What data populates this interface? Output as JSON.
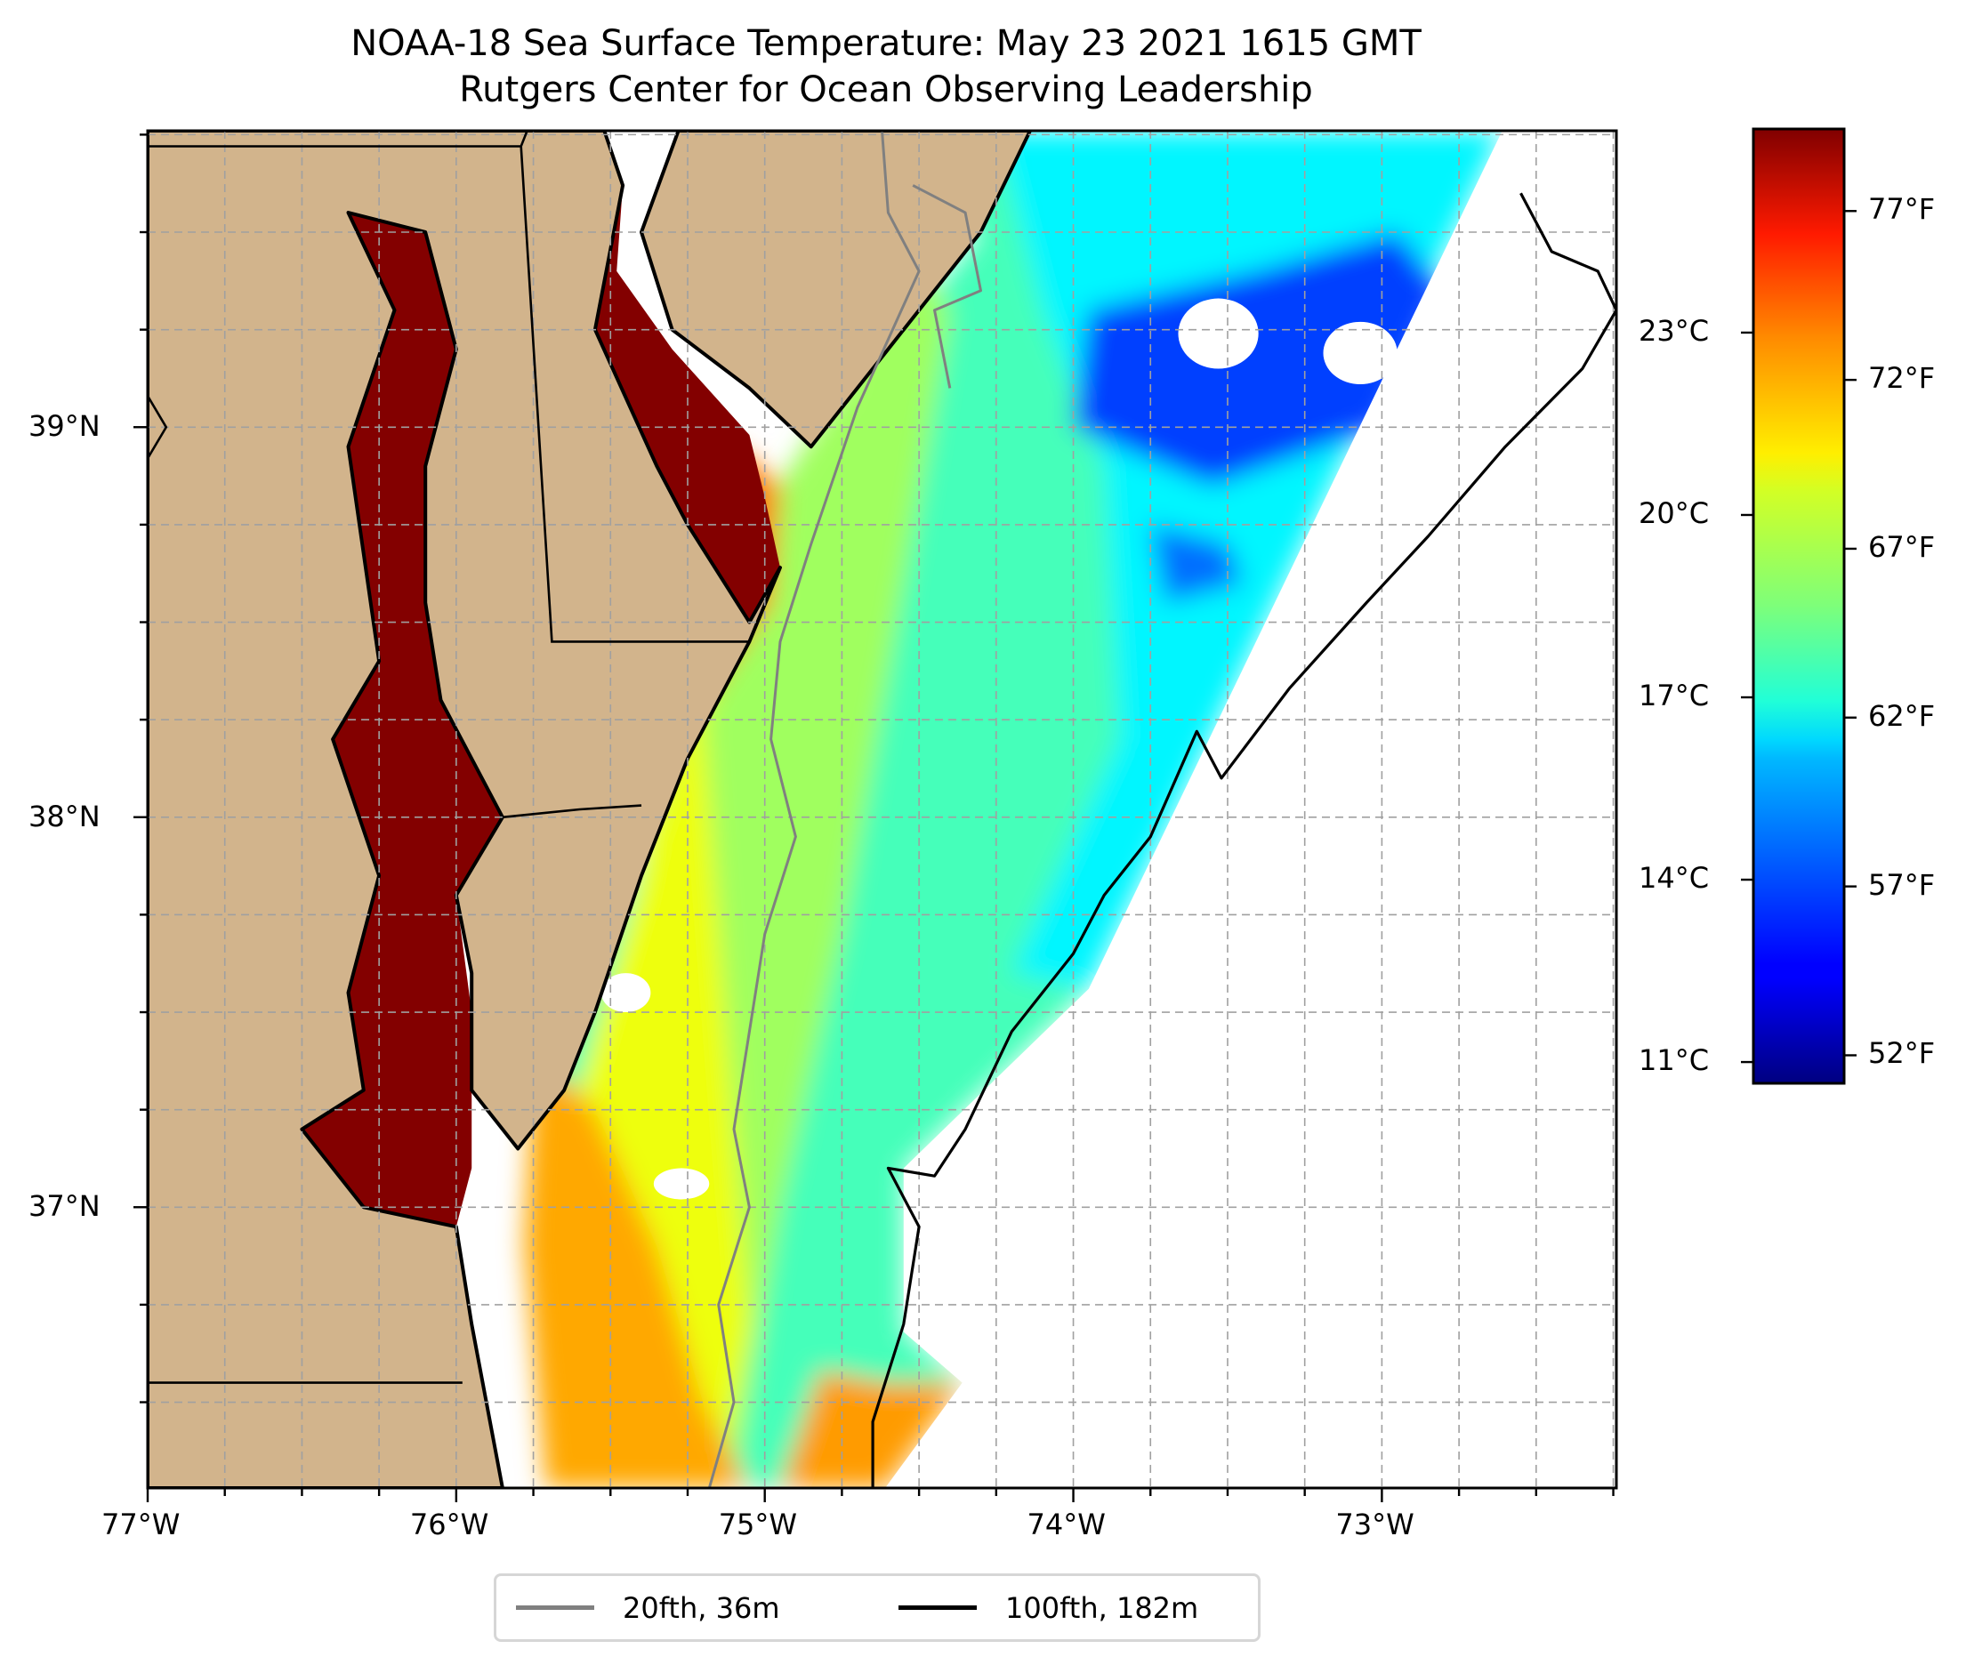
{
  "chart_data": {
    "type": "heatmap",
    "title": "NOAA-18 Sea Surface Temperature: May 23 2021 1615 GMT",
    "subtitle": "Rutgers Center for Ocean Observing Leadership",
    "xlabel": "",
    "ylabel": "",
    "projection": "PlateCarree",
    "extent": {
      "lon": [
        -77.0,
        -72.24
      ],
      "lat": [
        36.28,
        39.76
      ]
    },
    "grid": true,
    "x_ticks": [
      {
        "value": -77,
        "label": "77°W"
      },
      {
        "value": -76,
        "label": "76°W"
      },
      {
        "value": -75,
        "label": "75°W"
      },
      {
        "value": -74,
        "label": "74°W"
      },
      {
        "value": -73,
        "label": "73°W"
      }
    ],
    "x_minor_step": 0.25,
    "y_ticks": [
      {
        "value": 39,
        "label": "39°N"
      },
      {
        "value": 38,
        "label": "38°N"
      },
      {
        "value": 37,
        "label": "37°N"
      }
    ],
    "y_minor_step": 0.25,
    "colorbar": {
      "colormap": "jet",
      "range_c": [
        10.65,
        26.35
      ],
      "celsius_ticks": [
        {
          "value": 11,
          "label": "11°C"
        },
        {
          "value": 14,
          "label": "14°C"
        },
        {
          "value": 17,
          "label": "17°C"
        },
        {
          "value": 20,
          "label": "20°C"
        },
        {
          "value": 23,
          "label": "23°C"
        }
      ],
      "fahrenheit_ticks": [
        {
          "value": 52,
          "label": "52°F"
        },
        {
          "value": 57,
          "label": "57°F"
        },
        {
          "value": 62,
          "label": "62°F"
        },
        {
          "value": 67,
          "label": "67°F"
        },
        {
          "value": 72,
          "label": "72°F"
        },
        {
          "value": 77,
          "label": "77°F"
        }
      ]
    },
    "legend": {
      "placement": "bottom-center",
      "entries": [
        {
          "label": "20fth, 36m",
          "color": "#808080"
        },
        {
          "label": "100fth, 182m",
          "color": "#000000"
        }
      ]
    },
    "colors": {
      "land": "#d2b48c",
      "gridline": "#a0a0a0",
      "nodata": "#ffffff"
    },
    "sst_regions": [
      {
        "name": "offshore-swath-base",
        "temp_c": 17.6,
        "poly": [
          [
            -74.86,
            39.76
          ],
          [
            -72.61,
            39.76
          ],
          [
            -73.95,
            37.56
          ],
          [
            -74.55,
            37.1
          ],
          [
            -74.55,
            36.68
          ],
          [
            -74.36,
            36.55
          ],
          [
            -74.61,
            36.28
          ],
          [
            -75.71,
            36.28
          ],
          [
            -75.71,
            37.4
          ],
          [
            -75.2,
            38.25
          ],
          [
            -74.85,
            38.95
          ],
          [
            -74.6,
            39.2
          ],
          [
            -74.3,
            39.5
          ]
        ]
      },
      {
        "name": "shelf-mid",
        "temp_c": 19.0,
        "poly": [
          [
            -75.25,
            38.5
          ],
          [
            -74.75,
            39.1
          ],
          [
            -74.6,
            39.5
          ],
          [
            -74.4,
            39.3
          ],
          [
            -74.55,
            38.6
          ],
          [
            -74.75,
            37.7
          ],
          [
            -74.95,
            37.0
          ],
          [
            -75.1,
            36.28
          ],
          [
            -75.6,
            36.28
          ],
          [
            -75.55,
            37.3
          ]
        ]
      },
      {
        "name": "nearshore-warm",
        "temp_c": 20.2,
        "poly": [
          [
            -75.2,
            38.25
          ],
          [
            -75.0,
            38.75
          ],
          [
            -75.2,
            38.4
          ],
          [
            -75.5,
            37.6
          ],
          [
            -75.75,
            36.9
          ],
          [
            -75.45,
            36.28
          ],
          [
            -75.15,
            36.28
          ],
          [
            -75.05,
            36.7
          ],
          [
            -75.1,
            37.2
          ]
        ]
      },
      {
        "name": "virginia-beach-warm",
        "temp_c": 21.8,
        "poly": [
          [
            -75.75,
            37.4
          ],
          [
            -75.55,
            37.25
          ],
          [
            -75.35,
            36.9
          ],
          [
            -75.2,
            36.5
          ],
          [
            -75.05,
            36.28
          ],
          [
            -75.71,
            36.28
          ],
          [
            -75.78,
            36.9
          ]
        ]
      },
      {
        "name": "southeast-warm-lobe",
        "temp_c": 22.0,
        "poly": [
          [
            -74.82,
            36.58
          ],
          [
            -74.61,
            36.55
          ],
          [
            -74.36,
            36.55
          ],
          [
            -74.61,
            36.28
          ],
          [
            -74.95,
            36.28
          ]
        ]
      },
      {
        "name": "delaware-plume",
        "temp_c": 22.5,
        "poly": [
          [
            -75.1,
            38.95
          ],
          [
            -74.95,
            38.85
          ],
          [
            -74.98,
            38.55
          ],
          [
            -75.2,
            38.3
          ],
          [
            -75.3,
            38.55
          ]
        ]
      },
      {
        "name": "offshore-cool",
        "temp_c": 16.4,
        "poly": [
          [
            -74.25,
            39.76
          ],
          [
            -72.61,
            39.76
          ],
          [
            -73.95,
            37.56
          ],
          [
            -74.2,
            37.6
          ],
          [
            -73.85,
            38.2
          ],
          [
            -73.9,
            38.9
          ],
          [
            -74.1,
            39.3
          ]
        ]
      },
      {
        "name": "cold-core-north",
        "temp_c": 13.6,
        "poly": [
          [
            -73.95,
            39.3
          ],
          [
            -73.4,
            39.4
          ],
          [
            -72.95,
            39.5
          ],
          [
            -72.8,
            39.35
          ],
          [
            -73.0,
            39.0
          ],
          [
            -73.55,
            38.85
          ],
          [
            -74.0,
            39.0
          ]
        ]
      },
      {
        "name": "cold-patch-south",
        "temp_c": 14.3,
        "poly": [
          [
            -73.75,
            38.75
          ],
          [
            -73.5,
            38.7
          ],
          [
            -73.45,
            38.6
          ],
          [
            -73.7,
            38.55
          ]
        ]
      },
      {
        "name": "chesapeake-bay",
        "temp_c": 26.3,
        "poly": [
          [
            -76.35,
            39.55
          ],
          [
            -76.2,
            39.3
          ],
          [
            -76.35,
            38.95
          ],
          [
            -76.25,
            38.4
          ],
          [
            -76.4,
            38.2
          ],
          [
            -76.25,
            37.85
          ],
          [
            -76.35,
            37.55
          ],
          [
            -76.3,
            37.3
          ],
          [
            -76.5,
            37.2
          ],
          [
            -76.3,
            37.0
          ],
          [
            -76.0,
            36.95
          ],
          [
            -75.95,
            37.1
          ],
          [
            -75.95,
            37.5
          ],
          [
            -76.0,
            37.8
          ],
          [
            -75.85,
            38.0
          ],
          [
            -76.05,
            38.3
          ],
          [
            -76.1,
            38.55
          ],
          [
            -76.1,
            38.9
          ],
          [
            -76.0,
            39.2
          ],
          [
            -76.1,
            39.5
          ]
        ]
      },
      {
        "name": "delaware-bay",
        "temp_c": 26.3,
        "poly": [
          [
            -75.46,
            39.62
          ],
          [
            -75.48,
            39.4
          ],
          [
            -75.3,
            39.2
          ],
          [
            -75.05,
            38.98
          ],
          [
            -75.0,
            38.82
          ],
          [
            -74.95,
            38.64
          ],
          [
            -75.05,
            38.5
          ],
          [
            -75.25,
            38.75
          ],
          [
            -75.35,
            38.9
          ],
          [
            -75.55,
            39.25
          ]
        ]
      }
    ],
    "nodata_holes": [
      {
        "center": [
          -73.53,
          39.24
        ],
        "radius_deg": [
          0.13,
          0.09
        ]
      },
      {
        "center": [
          -73.07,
          39.19
        ],
        "radius_deg": [
          0.12,
          0.08
        ]
      },
      {
        "center": [
          -75.45,
          37.55
        ],
        "radius_deg": [
          0.08,
          0.05
        ]
      },
      {
        "center": [
          -75.27,
          37.06
        ],
        "radius_deg": [
          0.09,
          0.04
        ]
      }
    ]
  },
  "map": {
    "land": [
      {
        "name": "delmarva-and-maryland",
        "poly": [
          [
            -77.0,
            39.76
          ],
          [
            -75.52,
            39.76
          ],
          [
            -75.46,
            39.62
          ],
          [
            -75.55,
            39.25
          ],
          [
            -75.35,
            38.9
          ],
          [
            -75.25,
            38.75
          ],
          [
            -75.05,
            38.5
          ],
          [
            -74.95,
            38.64
          ],
          [
            -75.05,
            38.45
          ],
          [
            -75.25,
            38.15
          ],
          [
            -75.4,
            37.85
          ],
          [
            -75.55,
            37.5
          ],
          [
            -75.65,
            37.3
          ],
          [
            -75.8,
            37.15
          ],
          [
            -75.95,
            37.3
          ],
          [
            -75.95,
            37.6
          ],
          [
            -76.0,
            37.8
          ],
          [
            -75.85,
            38.0
          ],
          [
            -76.05,
            38.3
          ],
          [
            -76.1,
            38.55
          ],
          [
            -76.1,
            38.9
          ],
          [
            -76.0,
            39.2
          ],
          [
            -76.1,
            39.5
          ],
          [
            -76.35,
            39.55
          ],
          [
            -76.2,
            39.3
          ],
          [
            -76.35,
            38.95
          ],
          [
            -76.25,
            38.4
          ],
          [
            -76.4,
            38.2
          ],
          [
            -76.25,
            37.85
          ],
          [
            -76.35,
            37.55
          ],
          [
            -76.3,
            37.3
          ],
          [
            -76.5,
            37.2
          ],
          [
            -76.3,
            37.0
          ],
          [
            -76.0,
            36.95
          ],
          [
            -75.95,
            36.7
          ],
          [
            -75.85,
            36.28
          ],
          [
            -77.0,
            36.28
          ]
        ]
      },
      {
        "name": "new-jersey",
        "poly": [
          [
            -75.28,
            39.76
          ],
          [
            -74.14,
            39.76
          ],
          [
            -74.3,
            39.5
          ],
          [
            -74.6,
            39.2
          ],
          [
            -74.85,
            38.95
          ],
          [
            -74.89,
            38.98
          ],
          [
            -75.05,
            39.1
          ],
          [
            -75.3,
            39.25
          ],
          [
            -75.4,
            39.5
          ]
        ]
      }
    ],
    "state_lines": [
      {
        "name": "pa-md-line",
        "pts": [
          [
            -77.0,
            39.72
          ],
          [
            -75.79,
            39.72
          ],
          [
            -75.77,
            39.76
          ]
        ]
      },
      {
        "name": "md-de-line",
        "pts": [
          [
            -75.79,
            39.72
          ],
          [
            -75.69,
            38.45
          ],
          [
            -75.05,
            38.45
          ]
        ]
      },
      {
        "name": "md-va-line",
        "pts": [
          [
            -75.85,
            38.0
          ],
          [
            -75.6,
            38.02
          ],
          [
            -75.4,
            38.03
          ]
        ]
      },
      {
        "name": "va-nc-line",
        "pts": [
          [
            -77.0,
            36.55
          ],
          [
            -75.98,
            36.55
          ]
        ]
      },
      {
        "name": "va-wv-border",
        "pts": [
          [
            -77.0,
            39.08
          ],
          [
            -76.94,
            39.0
          ],
          [
            -77.0,
            38.92
          ]
        ]
      }
    ],
    "contour_20fth": [
      [
        [
          -74.62,
          39.76
        ],
        [
          -74.6,
          39.55
        ],
        [
          -74.5,
          39.4
        ],
        [
          -74.7,
          39.05
        ],
        [
          -74.85,
          38.7
        ],
        [
          -74.95,
          38.45
        ],
        [
          -74.98,
          38.2
        ],
        [
          -74.9,
          37.95
        ],
        [
          -75.0,
          37.7
        ],
        [
          -75.05,
          37.45
        ],
        [
          -75.1,
          37.2
        ],
        [
          -75.05,
          37.0
        ],
        [
          -75.15,
          36.75
        ],
        [
          -75.1,
          36.5
        ],
        [
          -75.18,
          36.28
        ]
      ],
      [
        [
          -74.52,
          39.62
        ],
        [
          -74.35,
          39.55
        ],
        [
          -74.3,
          39.35
        ],
        [
          -74.45,
          39.3
        ],
        [
          -74.4,
          39.1
        ]
      ]
    ],
    "contour_100fth": [
      [
        [
          -72.55,
          39.6
        ],
        [
          -72.45,
          39.45
        ],
        [
          -72.3,
          39.4
        ],
        [
          -72.24,
          39.3
        ],
        [
          -72.35,
          39.15
        ],
        [
          -72.6,
          38.95
        ],
        [
          -72.85,
          38.72
        ],
        [
          -73.05,
          38.55
        ],
        [
          -73.3,
          38.33
        ],
        [
          -73.52,
          38.1
        ],
        [
          -73.6,
          38.22
        ],
        [
          -73.75,
          37.95
        ],
        [
          -73.9,
          37.8
        ],
        [
          -74.0,
          37.65
        ],
        [
          -74.2,
          37.45
        ],
        [
          -74.35,
          37.2
        ],
        [
          -74.45,
          37.08
        ],
        [
          -74.6,
          37.1
        ],
        [
          -74.5,
          36.95
        ],
        [
          -74.55,
          36.7
        ],
        [
          -74.65,
          36.45
        ],
        [
          -74.65,
          36.28
        ]
      ]
    ]
  }
}
